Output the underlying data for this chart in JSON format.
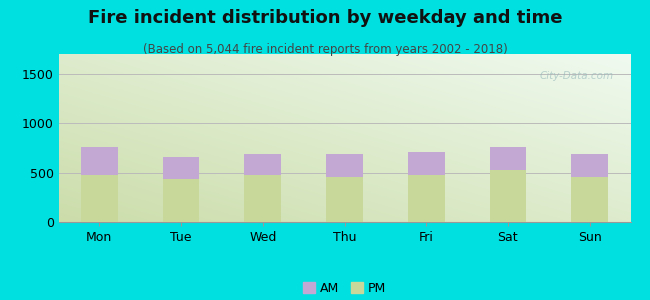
{
  "title": "Fire incident distribution by weekday and time",
  "subtitle": "(Based on 5,044 fire incident reports from years 2002 - 2018)",
  "categories": [
    "Mon",
    "Tue",
    "Wed",
    "Thu",
    "Fri",
    "Sat",
    "Sun"
  ],
  "pm_values": [
    480,
    440,
    475,
    455,
    480,
    530,
    455
  ],
  "am_values": [
    275,
    215,
    215,
    235,
    225,
    225,
    235
  ],
  "am_color": "#c4a8d4",
  "pm_color": "#c8d89a",
  "background_color": "#00e0e0",
  "watermark": "City-Data.com",
  "ylim": [
    0,
    1700
  ],
  "yticks": [
    0,
    500,
    1000,
    1500
  ],
  "bar_width": 0.45,
  "title_fontsize": 13,
  "subtitle_fontsize": 8.5,
  "legend_fontsize": 9,
  "tick_fontsize": 9,
  "grid_color": "#bbbbbb",
  "plot_bg_left": "#c8ddb0",
  "plot_bg_right": "#eaf5ea"
}
